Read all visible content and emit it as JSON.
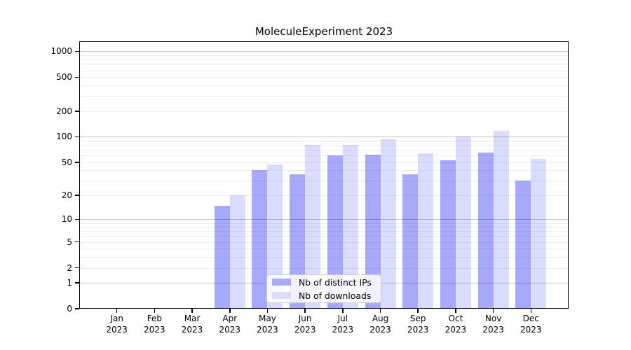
{
  "figure": {
    "title": "MoleculeExperiment 2023",
    "background": "#ffffff"
  },
  "chart_data": {
    "type": "bar",
    "title": "MoleculeExperiment 2023",
    "categories": [
      "Jan 2023",
      "Feb 2023",
      "Mar 2023",
      "Apr 2023",
      "May 2023",
      "Jun 2023",
      "Jul 2023",
      "Aug 2023",
      "Sep 2023",
      "Oct 2023",
      "Nov 2023",
      "Dec 2023"
    ],
    "series": [
      {
        "name": "Nb of distinct IPs",
        "color": "#a9a9f7",
        "fill_rgba": "rgba(0,0,235,0.34)",
        "values": [
          0,
          0,
          0,
          15,
          40,
          36,
          60,
          62,
          36,
          53,
          65,
          30
        ]
      },
      {
        "name": "Nb of downloads",
        "color": "#dcdcfa",
        "fill_rgba": "rgba(0,0,235,0.14)",
        "values": [
          0,
          0,
          0,
          20,
          47,
          80,
          80,
          93,
          64,
          100,
          118,
          55
        ]
      }
    ],
    "xlabel": "",
    "ylabel": "",
    "yscale": "log1p",
    "yticks": [
      0,
      1,
      2,
      5,
      10,
      20,
      50,
      100,
      200,
      500,
      1000
    ],
    "ylim": [
      0,
      1300
    ],
    "grid": true,
    "legend_position": "bottom-center",
    "colors": {
      "grid_major": "#c6c6c6",
      "grid_minor": "#ededed",
      "axis": "#000000",
      "text": "#000000",
      "background": "#ffffff"
    }
  }
}
